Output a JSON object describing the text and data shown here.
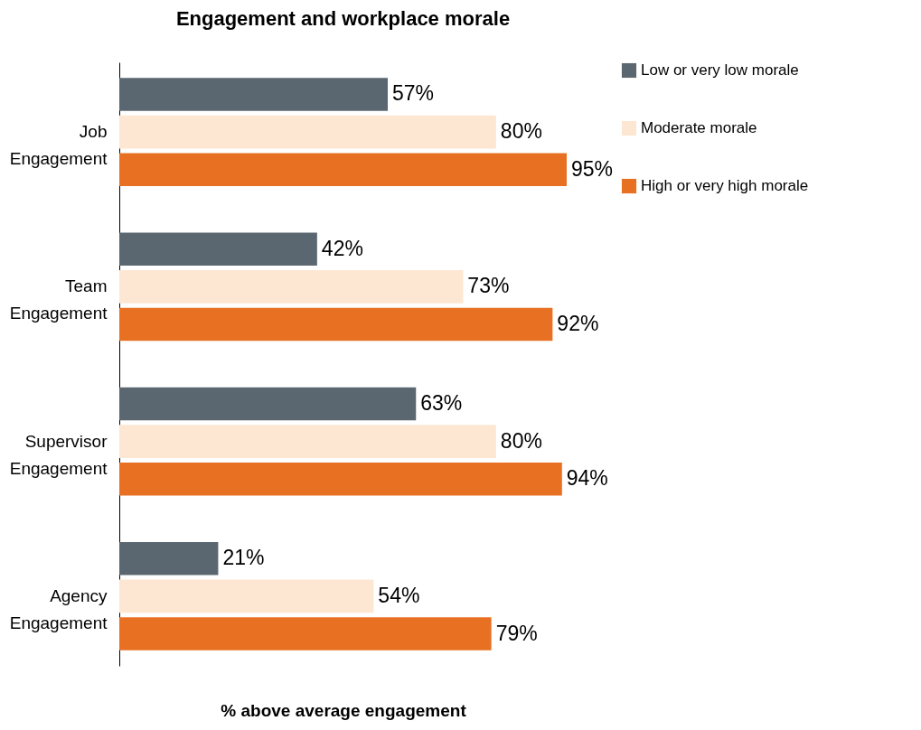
{
  "chart_data": {
    "type": "bar",
    "orientation": "horizontal",
    "title": "Engagement and workplace morale",
    "xlabel": "% above average engagement",
    "categories": [
      "Job Engagement",
      "Team Engagement",
      "Supervisor Engagement",
      "Agency Engagement"
    ],
    "series": [
      {
        "name": "Low or very low morale",
        "color": "#5b6770",
        "values": [
          57,
          42,
          63,
          21
        ],
        "value_labels": [
          "57%",
          "42%",
          "63%",
          "21%"
        ]
      },
      {
        "name": "Moderate morale",
        "color": "#fde7d3",
        "values": [
          80,
          73,
          80,
          54
        ],
        "value_labels": [
          "80%",
          "73%",
          "80%",
          "54%"
        ]
      },
      {
        "name": "High or very high morale",
        "color": "#e87023",
        "values": [
          95,
          92,
          94,
          79
        ],
        "value_labels": [
          "95%",
          "92%",
          "94%",
          "79%"
        ]
      }
    ],
    "legend": "right"
  }
}
